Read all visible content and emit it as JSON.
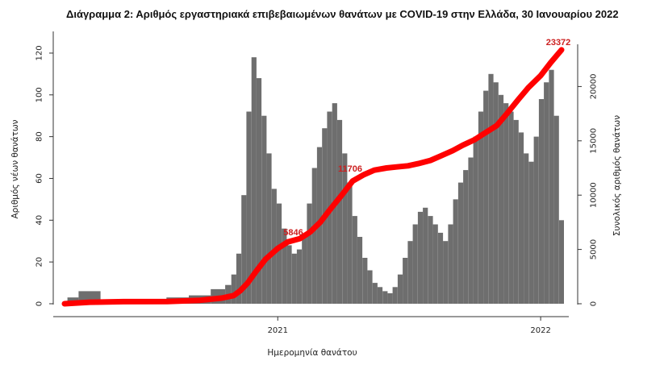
{
  "chart_data": {
    "type": "bar",
    "title": "Διάγραμμα 2: Αριθμός εργαστηριακά επιβεβαιωμένων θανάτων με COVID-19 στην Ελλάδα, 30 Ιανουαρίου 2022",
    "xlabel": "Ημερομηνία θανάτου",
    "ylabel": "Αριθμός νέων θανάτων",
    "y2label": "Συνολικός αριθμός θανάτων",
    "x_range": [
      "2020-03-11",
      "2022-01-30"
    ],
    "ylim": [
      0,
      130
    ],
    "y2lim": [
      0,
      25000
    ],
    "x_ticks": [
      {
        "date": "2021-01-01",
        "label": "2021"
      },
      {
        "date": "2022-01-01",
        "label": "2022"
      }
    ],
    "y_ticks": [
      0,
      20,
      40,
      60,
      80,
      100,
      120
    ],
    "y2_ticks": [
      0,
      5000,
      10000,
      15000,
      20000
    ],
    "grid": false,
    "series": [
      {
        "name": "",
        "kind": "bar",
        "axis": "left",
        "color": "#6e6e6e",
        "x": [
          "2020-03-15",
          "2020-04-15",
          "2020-05-15",
          "2020-06-15",
          "2020-07-15",
          "2020-08-15",
          "2020-09-15",
          "2020-10-15",
          "2020-10-25",
          "2020-11-01",
          "2020-11-08",
          "2020-11-15",
          "2020-11-22",
          "2020-11-29",
          "2020-12-06",
          "2020-12-13",
          "2020-12-20",
          "2020-12-27",
          "2021-01-03",
          "2021-01-10",
          "2021-01-17",
          "2021-01-24",
          "2021-01-31",
          "2021-02-07",
          "2021-02-14",
          "2021-02-21",
          "2021-02-28",
          "2021-03-07",
          "2021-03-14",
          "2021-03-21",
          "2021-03-28",
          "2021-04-04",
          "2021-04-11",
          "2021-04-18",
          "2021-04-25",
          "2021-05-02",
          "2021-05-09",
          "2021-05-16",
          "2021-05-23",
          "2021-05-30",
          "2021-06-06",
          "2021-06-13",
          "2021-06-20",
          "2021-06-27",
          "2021-07-04",
          "2021-07-11",
          "2021-07-18",
          "2021-07-25",
          "2021-08-01",
          "2021-08-08",
          "2021-08-15",
          "2021-08-22",
          "2021-08-29",
          "2021-09-05",
          "2021-09-12",
          "2021-09-19",
          "2021-09-26",
          "2021-10-03",
          "2021-10-10",
          "2021-10-17",
          "2021-10-24",
          "2021-10-31",
          "2021-11-07",
          "2021-11-14",
          "2021-11-21",
          "2021-11-28",
          "2021-12-05",
          "2021-12-12",
          "2021-12-19",
          "2021-12-26",
          "2022-01-02",
          "2022-01-09",
          "2022-01-16",
          "2022-01-23",
          "2022-01-30"
        ],
        "values": [
          3,
          6,
          2,
          1,
          2,
          3,
          4,
          7,
          9,
          14,
          24,
          52,
          92,
          118,
          108,
          90,
          72,
          55,
          48,
          36,
          28,
          24,
          26,
          32,
          48,
          65,
          75,
          84,
          92,
          96,
          88,
          72,
          58,
          42,
          32,
          22,
          16,
          10,
          8,
          6,
          5,
          8,
          14,
          22,
          30,
          38,
          44,
          46,
          42,
          38,
          34,
          30,
          38,
          50,
          58,
          64,
          70,
          80,
          92,
          102,
          110,
          106,
          100,
          96,
          92,
          88,
          82,
          72,
          68,
          80,
          98,
          106,
          112,
          90,
          40
        ]
      },
      {
        "name": "",
        "kind": "line",
        "axis": "right",
        "color": "#ff0000",
        "x": [
          "2020-03-11",
          "2020-04-15",
          "2020-06-01",
          "2020-08-01",
          "2020-09-15",
          "2020-10-15",
          "2020-11-01",
          "2020-11-10",
          "2020-11-20",
          "2020-12-01",
          "2020-12-15",
          "2021-01-01",
          "2021-01-15",
          "2021-02-01",
          "2021-02-15",
          "2021-03-01",
          "2021-03-15",
          "2021-04-01",
          "2021-04-15",
          "2021-05-01",
          "2021-05-15",
          "2021-06-01",
          "2021-06-15",
          "2021-07-01",
          "2021-07-15",
          "2021-08-01",
          "2021-08-15",
          "2021-09-01",
          "2021-09-15",
          "2021-10-01",
          "2021-10-15",
          "2021-11-01",
          "2021-11-15",
          "2021-12-01",
          "2021-12-15",
          "2022-01-01",
          "2022-01-15",
          "2022-01-30"
        ],
        "values": [
          0,
          140,
          190,
          210,
          320,
          520,
          760,
          1200,
          1900,
          2900,
          4100,
          5100,
          5700,
          6000,
          6600,
          7500,
          8700,
          10100,
          11300,
          11900,
          12300,
          12500,
          12600,
          12700,
          12900,
          13200,
          13600,
          14100,
          14600,
          15100,
          15700,
          16400,
          17500,
          18800,
          19900,
          21000,
          22200,
          23372
        ]
      }
    ],
    "annotations": [
      {
        "text": "5846",
        "x": "2021-01-27",
        "y2": 5846
      },
      {
        "text": "11706",
        "x": "2021-04-16",
        "y2": 11706
      },
      {
        "text": "23372",
        "x": "2022-01-30",
        "y2": 23372
      }
    ]
  }
}
